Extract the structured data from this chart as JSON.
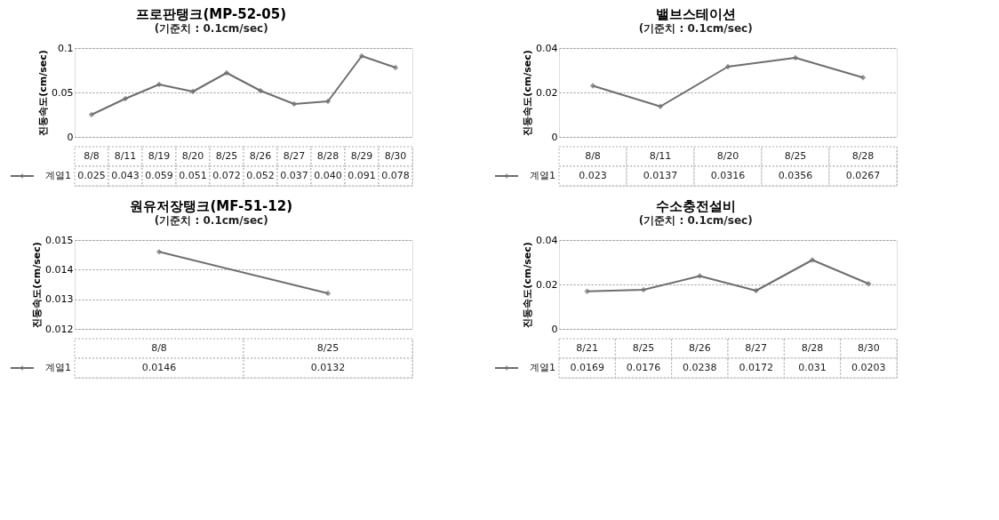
{
  "chart_data": [
    {
      "type": "line",
      "title": "프로판탱크(MP-52-05)",
      "subtitle": "(기준치 : 0.1cm/sec)",
      "ylabel": "진동속도(cm/sec)",
      "categories": [
        "8/8",
        "8/11",
        "8/19",
        "8/20",
        "8/25",
        "8/26",
        "8/27",
        "8/28",
        "8/29",
        "8/30"
      ],
      "series": [
        {
          "name": "계열1",
          "color": "#6e6e6e",
          "values": [
            0.025,
            0.043,
            0.059,
            0.051,
            0.072,
            0.052,
            0.037,
            0.04,
            0.091,
            0.078
          ],
          "value_labels": [
            "0.025",
            "0.043",
            "0.059",
            "0.051",
            "0.072",
            "0.052",
            "0.037",
            "0.040",
            "0.091",
            "0.078"
          ]
        }
      ],
      "ylim": [
        0,
        0.1
      ],
      "yticks": [
        0,
        0.05,
        0.1
      ],
      "grid": "y",
      "marker": "diamond",
      "line_style": "solid",
      "legend": "bottom left"
    },
    {
      "type": "line",
      "title": "밸브스테이션",
      "subtitle": "(기준치 : 0.1cm/sec)",
      "ylabel": "진동속도(cm/sec)",
      "categories": [
        "8/8",
        "8/11",
        "8/20",
        "8/25",
        "8/28"
      ],
      "series": [
        {
          "name": "계열1",
          "color": "#6e6e6e",
          "values": [
            0.023,
            0.0137,
            0.0316,
            0.0356,
            0.0267
          ],
          "value_labels": [
            "0.023",
            "0.0137",
            "0.0316",
            "0.0356",
            "0.0267"
          ]
        }
      ],
      "ylim": [
        0,
        0.04
      ],
      "yticks": [
        0,
        0.02,
        0.04
      ],
      "grid": "y",
      "marker": "diamond",
      "line_style": "solid",
      "legend": "bottom left"
    },
    {
      "type": "line",
      "title": "원유저장탱크(MF-51-12)",
      "subtitle": "(기준치 : 0.1cm/sec)",
      "ylabel": "진동속도(cm/sec)",
      "categories": [
        "8/8",
        "8/25"
      ],
      "series": [
        {
          "name": "계열1",
          "color": "#6e6e6e",
          "values": [
            0.0146,
            0.0132
          ],
          "value_labels": [
            "0.0146",
            "0.0132"
          ]
        }
      ],
      "ylim": [
        0.012,
        0.015
      ],
      "yticks": [
        0.012,
        0.013,
        0.014,
        0.015
      ],
      "grid": "y",
      "marker": "diamond",
      "line_style": "solid",
      "legend": "bottom left"
    },
    {
      "type": "line",
      "title": "수소충전설비",
      "subtitle": "(기준치 : 0.1cm/sec)",
      "ylabel": "진동속도(cm/sec)",
      "categories": [
        "8/21",
        "8/25",
        "8/26",
        "8/27",
        "8/28",
        "8/30"
      ],
      "series": [
        {
          "name": "계열1",
          "color": "#6e6e6e",
          "values": [
            0.0169,
            0.0176,
            0.0238,
            0.0172,
            0.031,
            0.0203
          ],
          "value_labels": [
            "0.0169",
            "0.0176",
            "0.0238",
            "0.0172",
            "0.031",
            "0.0203"
          ]
        }
      ],
      "ylim": [
        0,
        0.04
      ],
      "yticks": [
        0,
        0.02,
        0.04
      ],
      "grid": "y",
      "marker": "diamond",
      "line_style": "solid",
      "legend": "bottom left"
    }
  ]
}
